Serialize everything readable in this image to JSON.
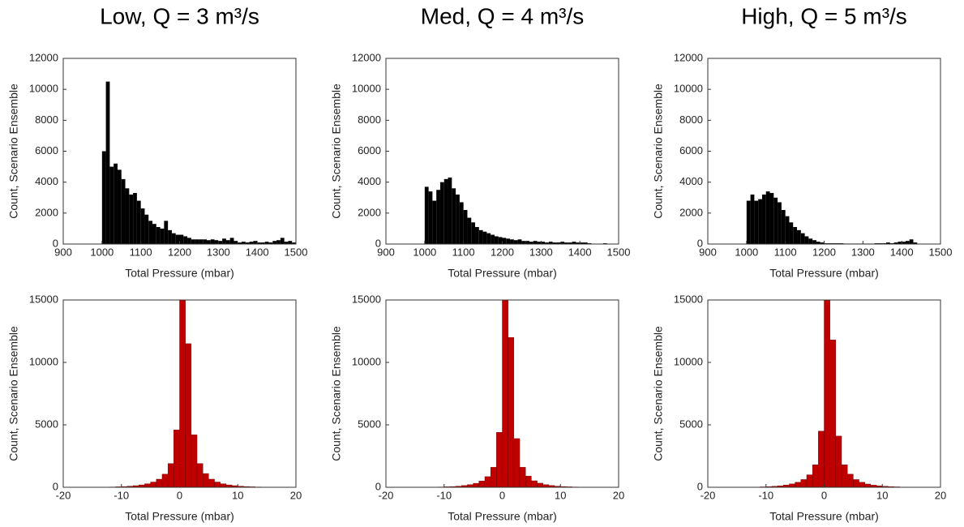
{
  "chart_data": [
    {
      "type": "histogram",
      "title": "Low, Q = 3 m³/s",
      "xlabel": "Total Pressure (mbar)",
      "ylabel": "Count, Scenario Ensemble",
      "color": "#000000",
      "bins": [
        1000,
        1010,
        1020,
        1030,
        1040,
        1050,
        1060,
        1070,
        1080,
        1090,
        1100,
        1110,
        1120,
        1130,
        1140,
        1150,
        1160,
        1170,
        1180,
        1190,
        1200,
        1210,
        1220,
        1230,
        1240,
        1250,
        1260,
        1270,
        1280,
        1290,
        1300,
        1310,
        1320,
        1330,
        1340,
        1350,
        1360,
        1370,
        1380,
        1390,
        1400,
        1410,
        1420,
        1430,
        1440,
        1450,
        1460,
        1470,
        1480,
        1490,
        1500
      ],
      "values": [
        6000,
        10500,
        5000,
        5200,
        4800,
        4200,
        3600,
        3200,
        3300,
        2800,
        2300,
        1900,
        1500,
        1300,
        1100,
        1000,
        1500,
        900,
        700,
        600,
        600,
        500,
        400,
        300,
        300,
        300,
        300,
        250,
        300,
        250,
        200,
        350,
        250,
        400,
        200,
        100,
        150,
        100,
        150,
        200,
        100,
        100,
        150,
        100,
        200,
        250,
        400,
        150,
        200,
        100
      ],
      "xlim": [
        900,
        1500
      ],
      "xticks": [
        900,
        1000,
        1100,
        1200,
        1300,
        1400,
        1500
      ],
      "ylim": [
        0,
        12000
      ],
      "yticks": [
        0,
        2000,
        4000,
        6000,
        8000,
        10000,
        12000
      ]
    },
    {
      "type": "histogram",
      "title": "Med, Q = 4 m³/s",
      "xlabel": "Total Pressure (mbar)",
      "ylabel": "Count, Scenario Ensemble",
      "color": "#000000",
      "bins": [
        1000,
        1010,
        1020,
        1030,
        1040,
        1050,
        1060,
        1070,
        1080,
        1090,
        1100,
        1110,
        1120,
        1130,
        1140,
        1150,
        1160,
        1170,
        1180,
        1190,
        1200,
        1210,
        1220,
        1230,
        1240,
        1250,
        1260,
        1270,
        1280,
        1290,
        1300,
        1310,
        1320,
        1330,
        1340,
        1350,
        1360,
        1370,
        1380,
        1390,
        1400,
        1410,
        1420,
        1430,
        1440,
        1450,
        1460,
        1470,
        1480,
        1490,
        1500
      ],
      "values": [
        3700,
        3400,
        2800,
        3500,
        4000,
        4200,
        4300,
        3600,
        3200,
        2700,
        2200,
        1700,
        1400,
        1100,
        900,
        800,
        700,
        600,
        500,
        450,
        400,
        350,
        300,
        250,
        300,
        200,
        200,
        150,
        200,
        150,
        150,
        100,
        150,
        100,
        100,
        150,
        100,
        100,
        150,
        100,
        100,
        100,
        50,
        0,
        0,
        0,
        50,
        0,
        0,
        0
      ],
      "xlim": [
        900,
        1500
      ],
      "xticks": [
        900,
        1000,
        1100,
        1200,
        1300,
        1400,
        1500
      ],
      "ylim": [
        0,
        12000
      ],
      "yticks": [
        0,
        2000,
        4000,
        6000,
        8000,
        10000,
        12000
      ]
    },
    {
      "type": "histogram",
      "title": "High, Q = 5 m³/s",
      "xlabel": "Total Pressure (mbar)",
      "ylabel": "Count, Scenario Ensemble",
      "color": "#000000",
      "bins": [
        1000,
        1010,
        1020,
        1030,
        1040,
        1050,
        1060,
        1070,
        1080,
        1090,
        1100,
        1110,
        1120,
        1130,
        1140,
        1150,
        1160,
        1170,
        1180,
        1190,
        1200,
        1210,
        1220,
        1230,
        1240,
        1250,
        1260,
        1270,
        1280,
        1290,
        1300,
        1310,
        1320,
        1330,
        1340,
        1350,
        1360,
        1370,
        1380,
        1390,
        1400,
        1410,
        1420,
        1430,
        1440,
        1450,
        1460,
        1470,
        1480,
        1490,
        1500
      ],
      "values": [
        2800,
        3200,
        2800,
        2900,
        3200,
        3400,
        3300,
        3000,
        2700,
        2200,
        1800,
        1400,
        1100,
        900,
        700,
        500,
        350,
        250,
        150,
        100,
        50,
        50,
        50,
        50,
        50,
        30,
        30,
        30,
        30,
        30,
        30,
        30,
        30,
        50,
        50,
        50,
        100,
        50,
        100,
        150,
        150,
        200,
        300,
        100,
        0,
        0,
        0,
        0,
        0,
        0
      ],
      "xlim": [
        900,
        1500
      ],
      "xticks": [
        900,
        1000,
        1100,
        1200,
        1300,
        1400,
        1500
      ],
      "ylim": [
        0,
        12000
      ],
      "yticks": [
        0,
        2000,
        4000,
        6000,
        8000,
        10000,
        12000
      ]
    },
    {
      "type": "histogram",
      "xlabel": "Total Pressure (mbar)",
      "ylabel": "Count, Scenario Ensemble",
      "color": "#c00000",
      "bins": [
        -15,
        -14,
        -13,
        -12,
        -11,
        -10,
        -9,
        -8,
        -7,
        -6,
        -5,
        -4,
        -3,
        -2,
        -1,
        0,
        1,
        2,
        3,
        4,
        5,
        6,
        7,
        8,
        9,
        10,
        11,
        12,
        13,
        14,
        15
      ],
      "values": [
        5,
        10,
        15,
        25,
        40,
        60,
        90,
        130,
        190,
        280,
        420,
        650,
        1050,
        1900,
        4600,
        15000,
        11500,
        4200,
        1900,
        1100,
        650,
        420,
        280,
        190,
        130,
        90,
        60,
        40,
        25,
        10
      ],
      "xlim": [
        -20,
        20
      ],
      "xticks": [
        -20,
        -10,
        0,
        10,
        20
      ],
      "ylim": [
        0,
        15000
      ],
      "yticks": [
        0,
        5000,
        10000,
        15000
      ]
    },
    {
      "type": "histogram",
      "xlabel": "Total Pressure (mbar)",
      "ylabel": "Count, Scenario Ensemble",
      "color": "#c00000",
      "bins": [
        -15,
        -14,
        -13,
        -12,
        -11,
        -10,
        -9,
        -8,
        -7,
        -6,
        -5,
        -4,
        -3,
        -2,
        -1,
        0,
        1,
        2,
        3,
        4,
        5,
        6,
        7,
        8,
        9,
        10,
        11,
        12,
        13,
        14,
        15
      ],
      "values": [
        5,
        5,
        10,
        15,
        25,
        40,
        60,
        90,
        140,
        210,
        320,
        500,
        850,
        1600,
        4400,
        15000,
        12000,
        3900,
        1600,
        900,
        520,
        330,
        210,
        140,
        90,
        60,
        40,
        25,
        15,
        5
      ],
      "xlim": [
        -20,
        20
      ],
      "xticks": [
        -20,
        -10,
        0,
        10,
        20
      ],
      "ylim": [
        0,
        15000
      ],
      "yticks": [
        0,
        5000,
        10000,
        15000
      ]
    },
    {
      "type": "histogram",
      "xlabel": "Total Pressure (mbar)",
      "ylabel": "Count, Scenario Ensemble",
      "color": "#c00000",
      "bins": [
        -15,
        -14,
        -13,
        -12,
        -11,
        -10,
        -9,
        -8,
        -7,
        -6,
        -5,
        -4,
        -3,
        -2,
        -1,
        0,
        1,
        2,
        3,
        4,
        5,
        6,
        7,
        8,
        9,
        10,
        11,
        12,
        13,
        14,
        15
      ],
      "values": [
        5,
        10,
        15,
        20,
        35,
        55,
        85,
        120,
        180,
        270,
        400,
        620,
        1000,
        1800,
        4500,
        15000,
        11800,
        4100,
        1800,
        1050,
        620,
        400,
        260,
        170,
        120,
        80,
        55,
        35,
        20,
        10
      ],
      "xlim": [
        -20,
        20
      ],
      "xticks": [
        -20,
        -10,
        0,
        10,
        20
      ],
      "ylim": [
        0,
        15000
      ],
      "yticks": [
        0,
        5000,
        10000,
        15000
      ]
    }
  ]
}
